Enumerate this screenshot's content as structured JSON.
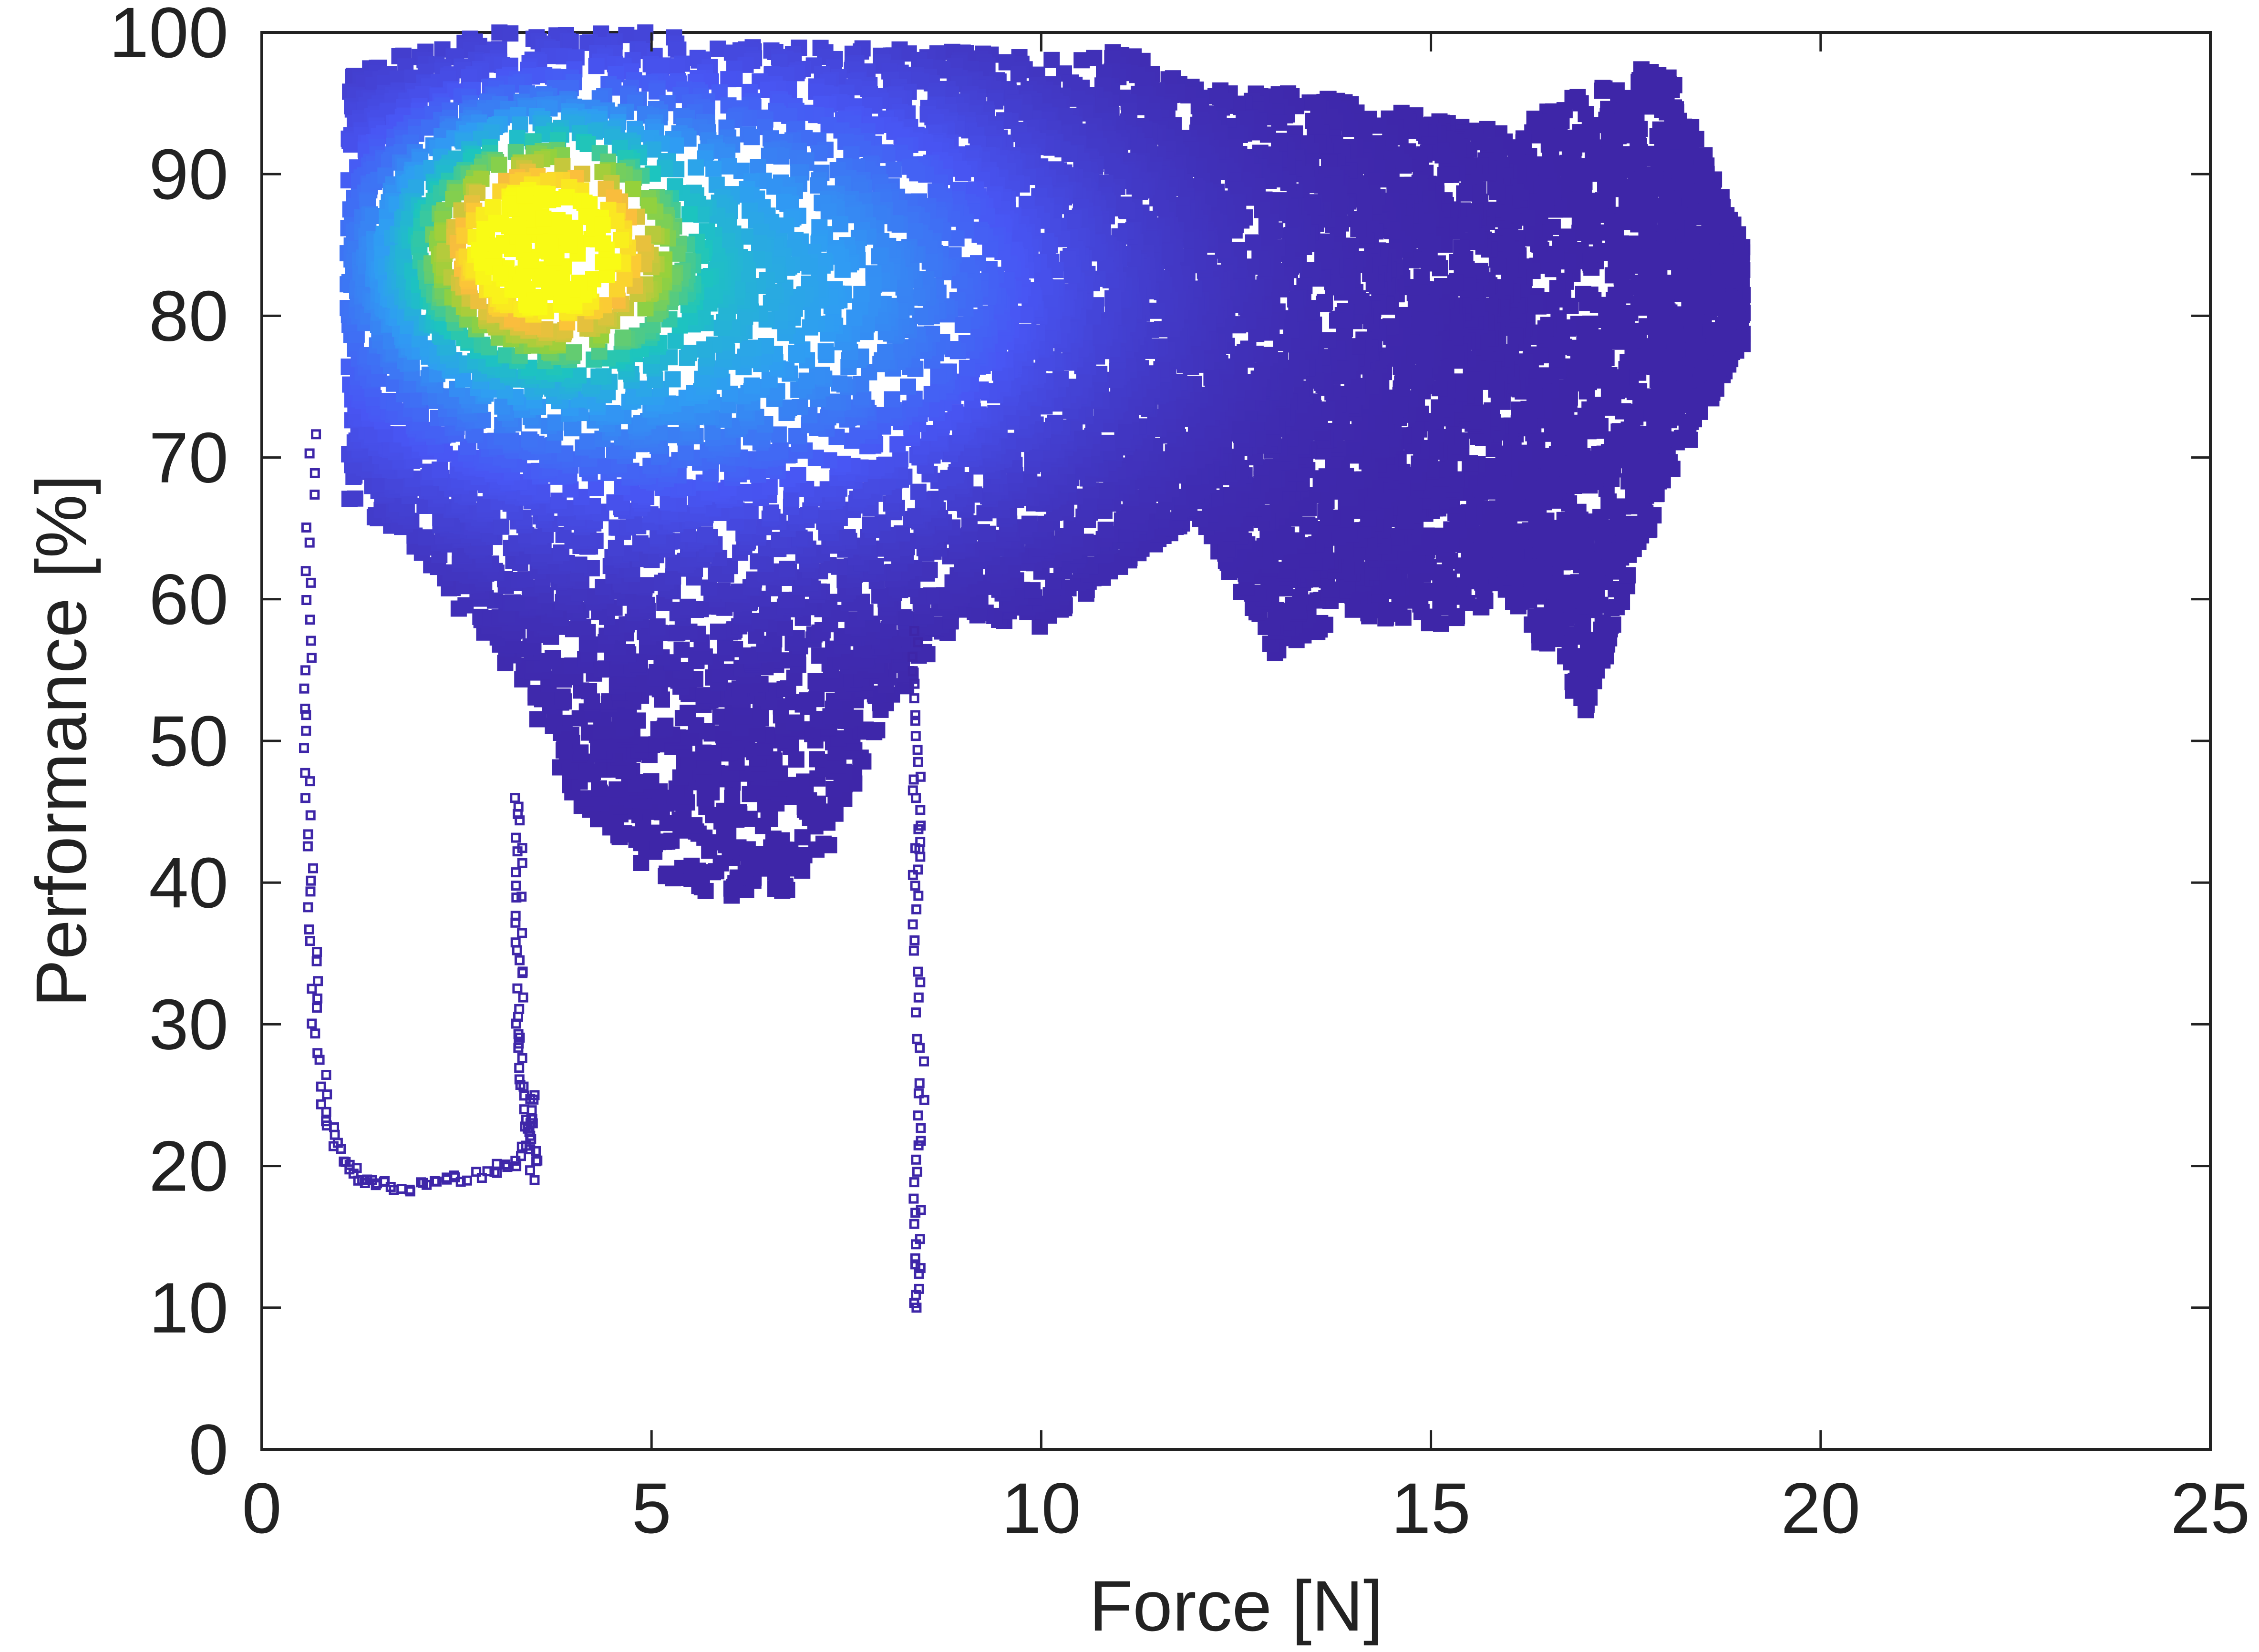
{
  "chart_data": {
    "type": "scatter",
    "title": "",
    "xlabel": "Force [N]",
    "ylabel": "Performance [%]",
    "xlim": [
      0,
      25
    ],
    "ylim": [
      0,
      100
    ],
    "xticks": [
      "0",
      "5",
      "10",
      "15",
      "20",
      "25"
    ],
    "yticks": [
      "0",
      "10",
      "20",
      "30",
      "40",
      "50",
      "60",
      "70",
      "80",
      "90",
      "100"
    ],
    "grid": false,
    "legend": "none",
    "marker": "open-square",
    "colormap": [
      "#3e26a8",
      "#4856f4",
      "#2f9df3",
      "#1cc5be",
      "#95d13b",
      "#fbbd3d",
      "#f9fb15"
    ],
    "density_peak": {
      "x": 3.6,
      "y": 85
    },
    "cloud_envelope": [
      {
        "x": 1.1,
        "y_min": 67,
        "y_max": 97
      },
      {
        "x": 2.0,
        "y_min": 63,
        "y_max": 99
      },
      {
        "x": 3.0,
        "y_min": 56,
        "y_max": 100
      },
      {
        "x": 4.0,
        "y_min": 46,
        "y_max": 100
      },
      {
        "x": 5.0,
        "y_min": 40,
        "y_max": 100
      },
      {
        "x": 6.0,
        "y_min": 39,
        "y_max": 99
      },
      {
        "x": 7.0,
        "y_min": 39,
        "y_max": 99
      },
      {
        "x": 8.0,
        "y_min": 52,
        "y_max": 99
      },
      {
        "x": 9.0,
        "y_min": 59,
        "y_max": 99
      },
      {
        "x": 10.0,
        "y_min": 58,
        "y_max": 98
      },
      {
        "x": 11.0,
        "y_min": 62,
        "y_max": 99
      },
      {
        "x": 12.0,
        "y_min": 66,
        "y_max": 96
      },
      {
        "x": 13.0,
        "y_min": 56,
        "y_max": 96
      },
      {
        "x": 14.0,
        "y_min": 59,
        "y_max": 95
      },
      {
        "x": 15.0,
        "y_min": 58,
        "y_max": 94
      },
      {
        "x": 16.0,
        "y_min": 60,
        "y_max": 93
      },
      {
        "x": 17.0,
        "y_min": 52,
        "y_max": 96
      },
      {
        "x": 18.0,
        "y_min": 68,
        "y_max": 98
      },
      {
        "x": 19.0,
        "y_min": 78,
        "y_max": 85
      }
    ],
    "outlier_trails": [
      {
        "name": "left-drop",
        "points": [
          [
            0.65,
            72
          ],
          [
            0.6,
            62
          ],
          [
            0.6,
            55
          ],
          [
            0.6,
            48
          ],
          [
            0.6,
            41
          ],
          [
            0.65,
            35
          ],
          [
            0.7,
            30
          ],
          [
            0.8,
            25
          ],
          [
            0.9,
            22
          ],
          [
            1.1,
            20
          ],
          [
            1.3,
            19
          ],
          [
            1.6,
            18.5
          ],
          [
            2.0,
            18.5
          ],
          [
            2.4,
            19
          ],
          [
            2.8,
            19.5
          ],
          [
            3.2,
            20
          ],
          [
            3.4,
            22
          ],
          [
            3.5,
            25
          ]
        ]
      },
      {
        "name": "vertical-3.3",
        "points": [
          [
            3.3,
            46
          ],
          [
            3.3,
            42
          ],
          [
            3.3,
            38
          ],
          [
            3.3,
            34
          ],
          [
            3.3,
            30
          ],
          [
            3.35,
            27
          ],
          [
            3.4,
            24
          ],
          [
            3.5,
            22
          ],
          [
            3.5,
            19
          ]
        ]
      },
      {
        "name": "vertical-8.4",
        "points": [
          [
            8.4,
            58
          ],
          [
            8.4,
            52
          ],
          [
            8.4,
            47
          ],
          [
            8.4,
            43
          ],
          [
            8.4,
            40
          ],
          [
            8.4,
            34
          ],
          [
            8.45,
            27
          ],
          [
            8.45,
            22
          ],
          [
            8.4,
            17
          ],
          [
            8.4,
            13
          ],
          [
            8.4,
            10
          ]
        ]
      }
    ]
  }
}
